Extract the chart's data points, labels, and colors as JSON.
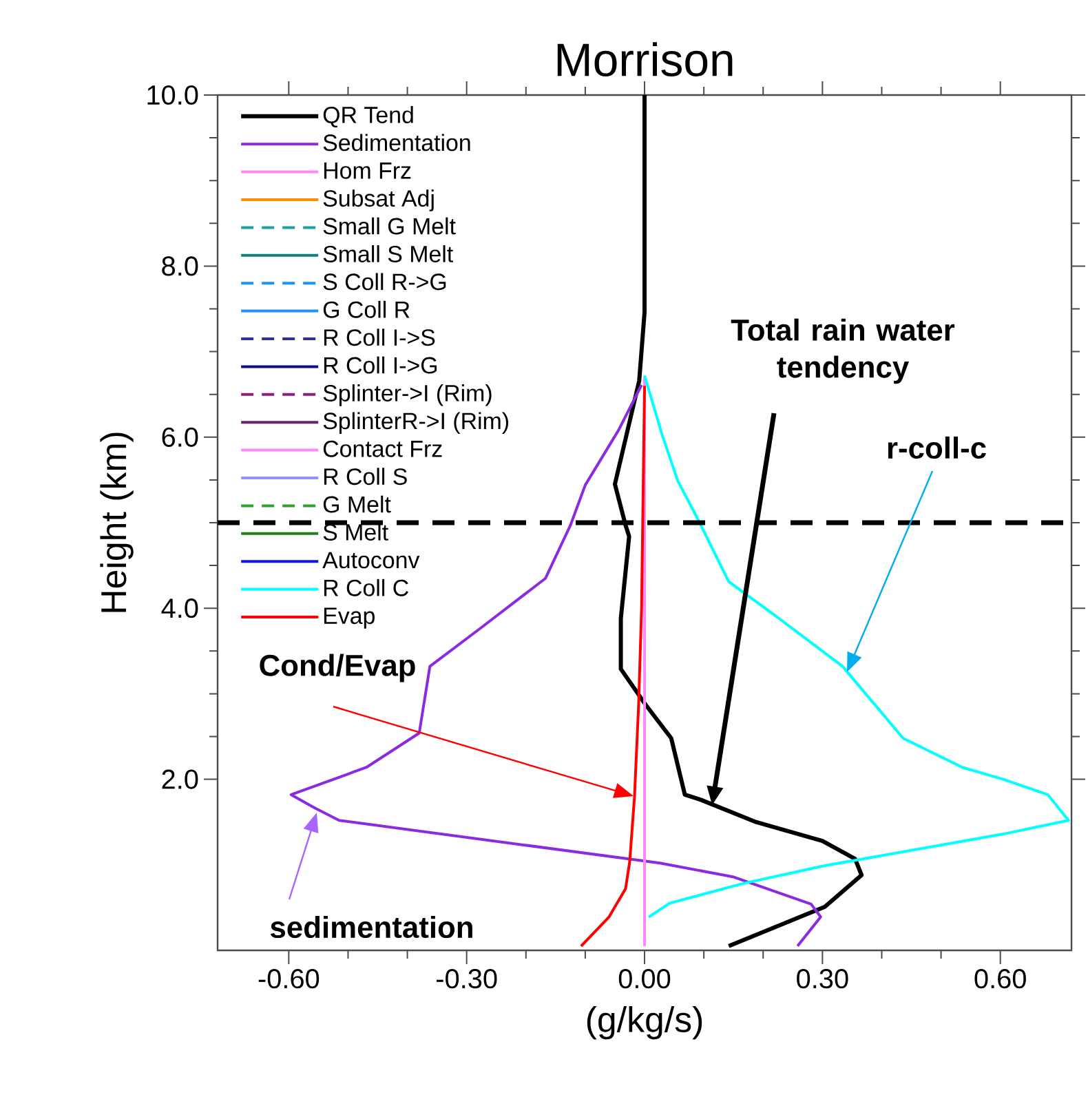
{
  "chart_data": {
    "type": "line",
    "title": "Morrison",
    "xlabel": "(g/kg/s)",
    "ylabel": "Height (km)",
    "xlim": [
      -0.72,
      0.72
    ],
    "ylim": [
      0,
      10
    ],
    "xticks": [
      {
        "value": -0.6,
        "label": "-0.60"
      },
      {
        "value": -0.3,
        "label": "-0.30"
      },
      {
        "value": 0,
        "label": "0.00"
      },
      {
        "value": 0.3,
        "label": "0.30"
      },
      {
        "value": 0.6,
        "label": "0.60"
      }
    ],
    "yticks": [
      {
        "value": 2,
        "label": "2.0"
      },
      {
        "value": 4,
        "label": "4.0"
      },
      {
        "value": 6,
        "label": "6.0"
      },
      {
        "value": 8,
        "label": "8.0"
      },
      {
        "value": 10,
        "label": "10.0"
      }
    ],
    "legend": "top left",
    "grid": false,
    "line_style": "solid",
    "series": [
      {
        "name": "QR Tend",
        "color": "#000000",
        "x": [
          0,
          0,
          -0.009,
          -0.05,
          -0.032,
          -0.026,
          -0.04,
          -0.04,
          0.002,
          0.045,
          0.068,
          0.095,
          0.188,
          0.3,
          0.355,
          0.366,
          0.304,
          0.142
        ],
        "values": [
          10,
          7.46,
          6.66,
          5.45,
          4.97,
          4.84,
          3.88,
          3.29,
          2.87,
          2.48,
          1.82,
          1.76,
          1.5,
          1.28,
          1.07,
          0.88,
          0.51,
          0.05
        ]
      },
      {
        "name": "Sedimentation",
        "color": "#8a2be2",
        "x": [
          -0.005,
          -0.044,
          -0.1,
          -0.125,
          -0.167,
          -0.276,
          -0.362,
          -0.38,
          -0.469,
          -0.596,
          -0.555,
          -0.515,
          0.026,
          0.149,
          0.281,
          0.297,
          0.258
        ],
        "values": [
          6.61,
          6.08,
          5.44,
          4.97,
          4.35,
          3.77,
          3.32,
          2.54,
          2.14,
          1.82,
          1.66,
          1.52,
          1.02,
          0.86,
          0.54,
          0.39,
          0.05
        ]
      },
      {
        "name": "Hom Frz",
        "color": "#ff88ff",
        "x": [
          0,
          0
        ],
        "values": [
          0.05,
          6.7
        ]
      },
      {
        "name": "Subsat Adj",
        "color": "#ff8c00",
        "x": [
          null
        ],
        "values": [
          null
        ]
      },
      {
        "name": "Small G Melt",
        "color": "#20a0a0",
        "line_style": "dashed",
        "x": [
          null
        ],
        "values": [
          null
        ]
      },
      {
        "name": "Small S Melt",
        "color": "#108080",
        "x": [
          null
        ],
        "values": [
          null
        ]
      },
      {
        "name": "S Coll R->G",
        "color": "#1e90ff",
        "line_style": "dashed",
        "x": [
          null
        ],
        "values": [
          null
        ]
      },
      {
        "name": "G Coll R",
        "color": "#1e90ff",
        "x": [
          null
        ],
        "values": [
          null
        ]
      },
      {
        "name": "R Coll I->S",
        "color": "#303090",
        "line_style": "dashed",
        "x": [
          null
        ],
        "values": [
          null
        ]
      },
      {
        "name": "R Coll I->G",
        "color": "#101080",
        "x": [
          null
        ],
        "values": [
          null
        ]
      },
      {
        "name": "Splinter->I (Rim)",
        "color": "#8b2080",
        "line_style": "dashed",
        "x": [
          null
        ],
        "values": [
          null
        ]
      },
      {
        "name": "SplinterR->I (Rim)",
        "color": "#702070",
        "x": [
          null
        ],
        "values": [
          null
        ]
      },
      {
        "name": "Contact Frz",
        "color": "#ff88ff",
        "x": [
          null
        ],
        "values": [
          null
        ]
      },
      {
        "name": "R Coll S",
        "color": "#9090ff",
        "x": [
          null
        ],
        "values": [
          null
        ]
      },
      {
        "name": "G Melt",
        "color": "#30a030",
        "line_style": "dashed",
        "x": [
          null
        ],
        "values": [
          null
        ]
      },
      {
        "name": "S Melt",
        "color": "#208020",
        "x": [
          null
        ],
        "values": [
          null
        ]
      },
      {
        "name": "Autoconv",
        "color": "#1010ff",
        "x": [
          null
        ],
        "values": [
          null
        ]
      },
      {
        "name": "R Coll C",
        "color": "#00ffff",
        "x": [
          0,
          0.03,
          0.056,
          0.09,
          0.142,
          0.227,
          0.334,
          0.436,
          0.536,
          0.605,
          0.68,
          0.715,
          0.605,
          0.304,
          0.165,
          0.042,
          0.007
        ],
        "values": [
          6.72,
          6.02,
          5.49,
          5.04,
          4.31,
          3.88,
          3.32,
          2.48,
          2.14,
          2.0,
          1.82,
          1.52,
          1.36,
          0.99,
          0.78,
          0.55,
          0.39
        ]
      },
      {
        "name": "Evap",
        "color": "#ff0000",
        "x": [
          0,
          -0.005,
          -0.01,
          -0.017,
          -0.025,
          -0.032,
          -0.06,
          -0.107
        ],
        "values": [
          6.6,
          4.0,
          2.87,
          1.79,
          1.04,
          0.72,
          0.39,
          0.05
        ]
      }
    ],
    "ref_lines": [
      {
        "axis": "y",
        "value": 5.0,
        "color": "#000000",
        "line_style": "dashed"
      }
    ],
    "annotations": [
      "Total rain water tendency",
      "Cond/Evap",
      "sedimentation",
      "r-coll-c"
    ]
  }
}
